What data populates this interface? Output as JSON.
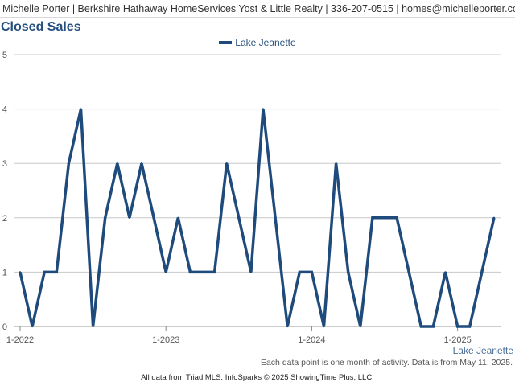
{
  "header": {
    "text": "Michelle Porter | Berkshire Hathaway HomeServices Yost & Little Realty | 336-207-0515 | homes@michelleporter.com"
  },
  "colors": {
    "line": "#1f4b7c",
    "title": "#254f7f",
    "grid": "#c8c8c8",
    "axis": "#555555"
  },
  "chart_data": {
    "type": "line",
    "title": "Closed Sales",
    "legend": {
      "entries": [
        "Lake Jeanette"
      ],
      "placement": "top-center"
    },
    "series_label": "Lake Jeanette",
    "ylim": [
      0,
      5
    ],
    "yticks": [
      "0",
      "1",
      "2",
      "3",
      "4",
      "5"
    ],
    "x_tick_labels": [
      {
        "label": "1-2022",
        "month_index": 0
      },
      {
        "label": "1-2023",
        "month_index": 12
      },
      {
        "label": "1-2024",
        "month_index": 24
      },
      {
        "label": "1-2025",
        "month_index": 36
      }
    ],
    "grid": "horizontal",
    "series": [
      {
        "name": "Lake Jeanette",
        "x": [
          "2022-01",
          "2022-02",
          "2022-03",
          "2022-04",
          "2022-05",
          "2022-06",
          "2022-07",
          "2022-08",
          "2022-09",
          "2022-10",
          "2022-11",
          "2022-12",
          "2023-01",
          "2023-02",
          "2023-03",
          "2023-04",
          "2023-05",
          "2023-06",
          "2023-07",
          "2023-08",
          "2023-09",
          "2023-10",
          "2023-11",
          "2023-12",
          "2024-01",
          "2024-02",
          "2024-03",
          "2024-04",
          "2024-05",
          "2024-06",
          "2024-07",
          "2024-08",
          "2024-09",
          "2024-10",
          "2024-11",
          "2024-12",
          "2025-01",
          "2025-02",
          "2025-03",
          "2025-04"
        ],
        "values": [
          1,
          0,
          1,
          1,
          3,
          4,
          0,
          2,
          3,
          2,
          3,
          2,
          1,
          2,
          1,
          1,
          1,
          3,
          2,
          1,
          4,
          2,
          0,
          1,
          1,
          0,
          3,
          1,
          0,
          2,
          2,
          2,
          1,
          0,
          0,
          1,
          0,
          0,
          1,
          2
        ]
      }
    ]
  },
  "footnote": "Each data point is one month of activity. Data is from May 11, 2025.",
  "credit": "All data from Triad MLS. InfoSparks © 2025 ShowingTime Plus, LLC."
}
